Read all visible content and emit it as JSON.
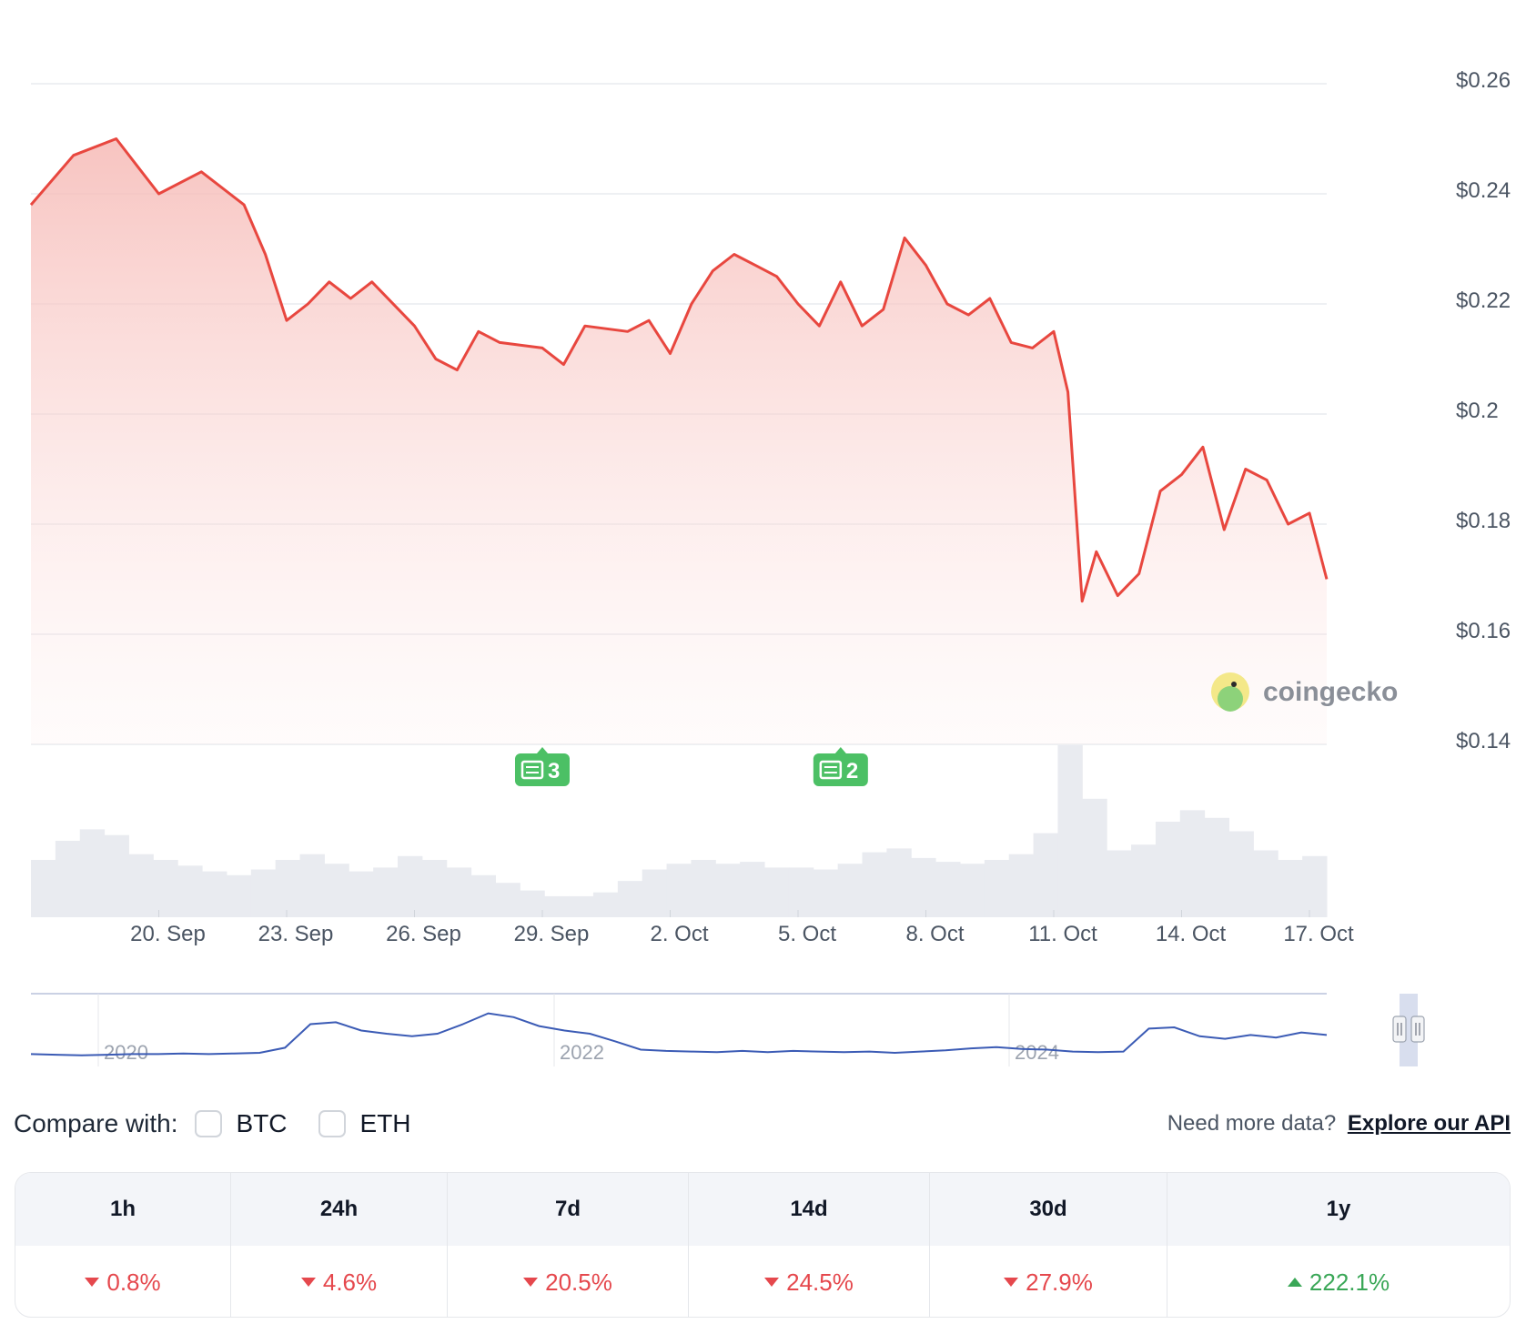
{
  "chart_data": {
    "type": "area",
    "y_ticks": [
      "$0.26",
      "$0.24",
      "$0.22",
      "$0.2",
      "$0.18",
      "$0.16",
      "$0.14"
    ],
    "y_tick_values": [
      0.26,
      0.24,
      0.22,
      0.2,
      0.18,
      0.16,
      0.14
    ],
    "ylim": [
      0.14,
      0.26
    ],
    "x_ticks": [
      "20. Sep",
      "23. Sep",
      "26. Sep",
      "29. Sep",
      "2. Oct",
      "5. Oct",
      "8. Oct",
      "11. Oct",
      "14. Oct",
      "17. Oct"
    ],
    "grid": true,
    "colors": {
      "line": "#e8473f",
      "area": "#f8c8c5",
      "volume": "#e9ebf0",
      "navigator": "#3b5bb5",
      "badge": "#4cc065"
    },
    "price": [
      [
        "17. Sep",
        0.238
      ],
      [
        "18. Sep",
        0.247
      ],
      [
        "19. Sep",
        0.25
      ],
      [
        "19. Sep",
        0.245
      ],
      [
        "20. Sep",
        0.24
      ],
      [
        "21. Sep",
        0.244
      ],
      [
        "22. Sep",
        0.238
      ],
      [
        "22. Sep",
        0.229
      ],
      [
        "23. Sep",
        0.217
      ],
      [
        "23. Sep",
        0.22
      ],
      [
        "24. Sep",
        0.224
      ],
      [
        "24. Sep",
        0.221
      ],
      [
        "25. Sep",
        0.224
      ],
      [
        "26. Sep",
        0.216
      ],
      [
        "26. Sep",
        0.21
      ],
      [
        "27. Sep",
        0.208
      ],
      [
        "27. Sep",
        0.215
      ],
      [
        "28. Sep",
        0.213
      ],
      [
        "29. Sep",
        0.212
      ],
      [
        "29. Sep",
        0.209
      ],
      [
        "30. Sep",
        0.216
      ],
      [
        "1. Oct",
        0.215
      ],
      [
        "1. Oct",
        0.217
      ],
      [
        "2. Oct",
        0.211
      ],
      [
        "2. Oct",
        0.22
      ],
      [
        "3. Oct",
        0.226
      ],
      [
        "3. Oct",
        0.229
      ],
      [
        "4. Oct",
        0.227
      ],
      [
        "4. Oct",
        0.225
      ],
      [
        "5. Oct",
        0.22
      ],
      [
        "5. Oct",
        0.216
      ],
      [
        "6. Oct",
        0.224
      ],
      [
        "6. Oct",
        0.216
      ],
      [
        "7. Oct",
        0.219
      ],
      [
        "7. Oct",
        0.232
      ],
      [
        "8. Oct",
        0.227
      ],
      [
        "8. Oct",
        0.22
      ],
      [
        "9. Oct",
        0.218
      ],
      [
        "9. Oct",
        0.221
      ],
      [
        "10. Oct",
        0.213
      ],
      [
        "10. Oct",
        0.212
      ],
      [
        "11. Oct",
        0.215
      ],
      [
        "11. Oct",
        0.204
      ],
      [
        "11. Oct",
        0.166
      ],
      [
        "12. Oct",
        0.175
      ],
      [
        "12. Oct",
        0.167
      ],
      [
        "13. Oct",
        0.171
      ],
      [
        "13. Oct",
        0.186
      ],
      [
        "14. Oct",
        0.189
      ],
      [
        "14. Oct",
        0.194
      ],
      [
        "15. Oct",
        0.179
      ],
      [
        "15. Oct",
        0.19
      ],
      [
        "16. Oct",
        0.188
      ],
      [
        "16. Oct",
        0.18
      ],
      [
        "17. Oct",
        0.182
      ],
      [
        "17. Oct",
        0.17
      ]
    ],
    "volume": [
      0.3,
      0.4,
      0.46,
      0.43,
      0.33,
      0.3,
      0.27,
      0.24,
      0.22,
      0.25,
      0.3,
      0.33,
      0.28,
      0.24,
      0.26,
      0.32,
      0.3,
      0.26,
      0.22,
      0.18,
      0.14,
      0.11,
      0.11,
      0.13,
      0.19,
      0.25,
      0.28,
      0.3,
      0.28,
      0.29,
      0.26,
      0.26,
      0.25,
      0.28,
      0.34,
      0.36,
      0.31,
      0.29,
      0.28,
      0.3,
      0.33,
      0.44,
      0.9,
      0.62,
      0.35,
      0.38,
      0.5,
      0.56,
      0.52,
      0.45,
      0.35,
      0.3,
      0.32
    ],
    "news_badges": [
      {
        "date": "29. Sep",
        "count": "3"
      },
      {
        "date": "6. Oct",
        "count": "2"
      }
    ],
    "navigator": {
      "labels": [
        "2020",
        "2022",
        "2024"
      ],
      "series": [
        0.08,
        0.07,
        0.06,
        0.07,
        0.08,
        0.08,
        0.09,
        0.08,
        0.09,
        0.1,
        0.18,
        0.55,
        0.58,
        0.45,
        0.4,
        0.36,
        0.4,
        0.55,
        0.72,
        0.66,
        0.52,
        0.45,
        0.4,
        0.28,
        0.15,
        0.13,
        0.12,
        0.11,
        0.13,
        0.11,
        0.13,
        0.12,
        0.11,
        0.12,
        0.1,
        0.12,
        0.14,
        0.17,
        0.19,
        0.16,
        0.15,
        0.12,
        0.11,
        0.12,
        0.48,
        0.5,
        0.36,
        0.32,
        0.38,
        0.34,
        0.42,
        0.38
      ]
    },
    "watermark": "coingecko"
  },
  "compare": {
    "label": "Compare with:",
    "options": [
      "BTC",
      "ETH"
    ],
    "api_prompt": "Need more data?",
    "api_link": "Explore our API"
  },
  "performance": {
    "periods": [
      "1h",
      "24h",
      "7d",
      "14d",
      "30d",
      "1y"
    ],
    "values": [
      "0.8%",
      "4.6%",
      "20.5%",
      "24.5%",
      "27.9%",
      "222.1%"
    ],
    "direction": [
      "down",
      "down",
      "down",
      "down",
      "down",
      "up"
    ]
  }
}
